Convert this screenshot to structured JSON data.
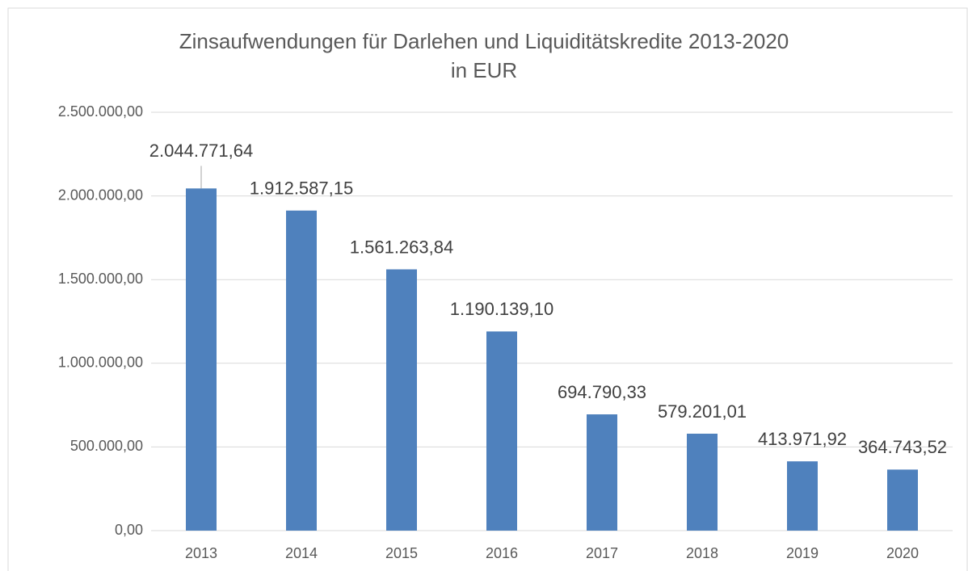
{
  "chart_data": {
    "type": "bar",
    "title": "Zinsaufwendungen für Darlehen und Liquiditätskredite 2013-2020",
    "subtitle": "in EUR",
    "categories": [
      "2013",
      "2014",
      "2015",
      "2016",
      "2017",
      "2018",
      "2019",
      "2020"
    ],
    "values": [
      2044771.64,
      1912587.15,
      1561263.84,
      1190139.1,
      694790.33,
      579201.01,
      413971.92,
      364743.52
    ],
    "value_labels": [
      "2.044.771,64",
      "1.912.587,15",
      "1.561.263,84",
      "1.190.139,10",
      "694.790,33",
      "579.201,01",
      "413.971,92",
      "364.743,52"
    ],
    "color": "#4f81bd",
    "ylim": [
      0,
      2500000
    ],
    "yticks": [
      {
        "value": 0,
        "label": "0,00"
      },
      {
        "value": 500000,
        "label": "500.000,00"
      },
      {
        "value": 1000000,
        "label": "1.000.000,00"
      },
      {
        "value": 1500000,
        "label": "1.500.000,00"
      },
      {
        "value": 2000000,
        "label": "2.000.000,00"
      },
      {
        "value": 2500000,
        "label": "2.500.000,00"
      }
    ],
    "grid": true
  }
}
